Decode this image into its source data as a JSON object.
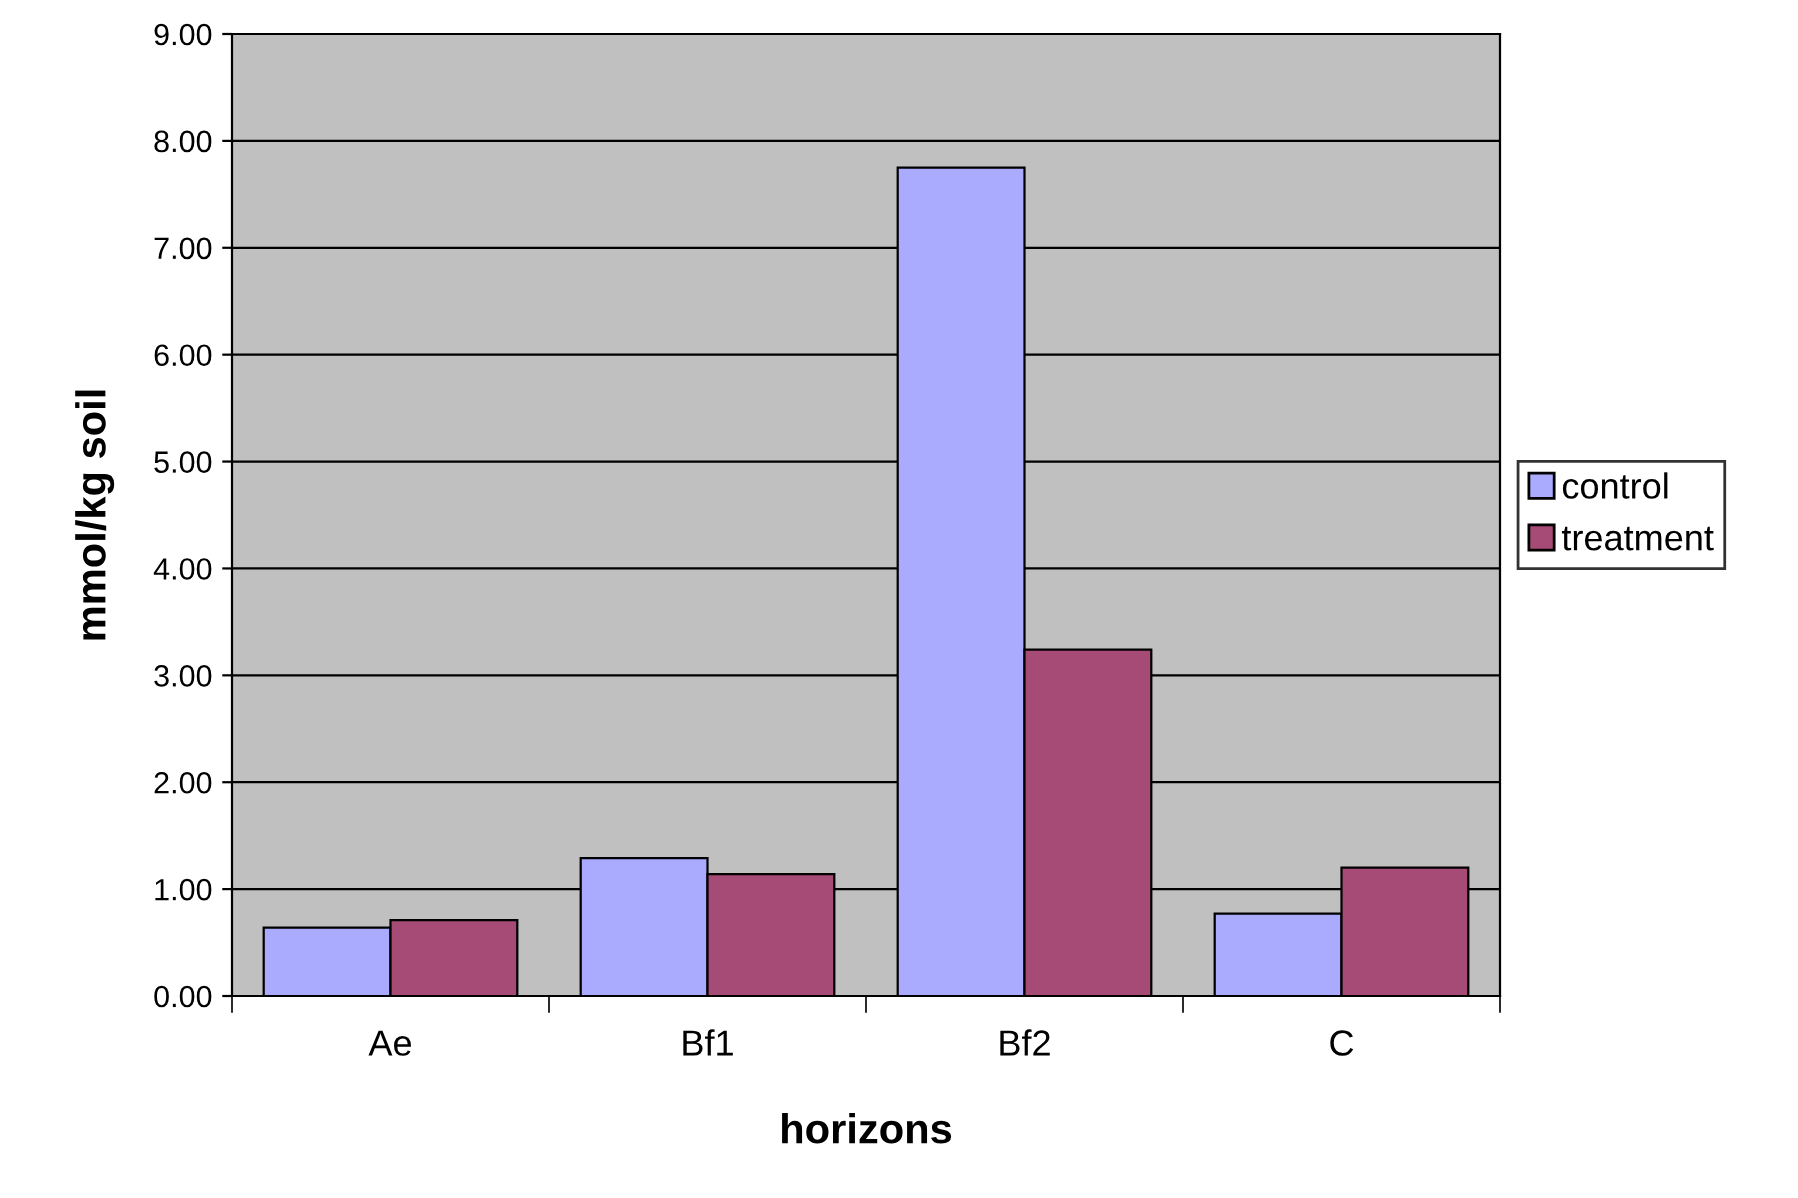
{
  "chart_data": {
    "type": "bar",
    "xlabel": "horizons",
    "ylabel": "mmol/kg soil",
    "categories": [
      "Ae",
      "Bf1",
      "Bf2",
      "C"
    ],
    "series": [
      {
        "name": "control",
        "color": "#aaaaff",
        "values": [
          0.64,
          1.29,
          7.75,
          0.77
        ]
      },
      {
        "name": "treatment",
        "color": "#a64a76",
        "values": [
          0.71,
          1.14,
          3.24,
          1.2
        ]
      }
    ],
    "ylim": [
      0,
      9
    ],
    "yticks": [
      {
        "value": 0,
        "label": "0.00"
      },
      {
        "value": 1,
        "label": "1.00"
      },
      {
        "value": 2,
        "label": "2.00"
      },
      {
        "value": 3,
        "label": "3.00"
      },
      {
        "value": 4,
        "label": "4.00"
      },
      {
        "value": 5,
        "label": "5.00"
      },
      {
        "value": 6,
        "label": "6.00"
      },
      {
        "value": 7,
        "label": "7.00"
      },
      {
        "value": 8,
        "label": "8.00"
      },
      {
        "value": 9,
        "label": "9.00"
      }
    ],
    "grid": "y",
    "legend": "right"
  }
}
